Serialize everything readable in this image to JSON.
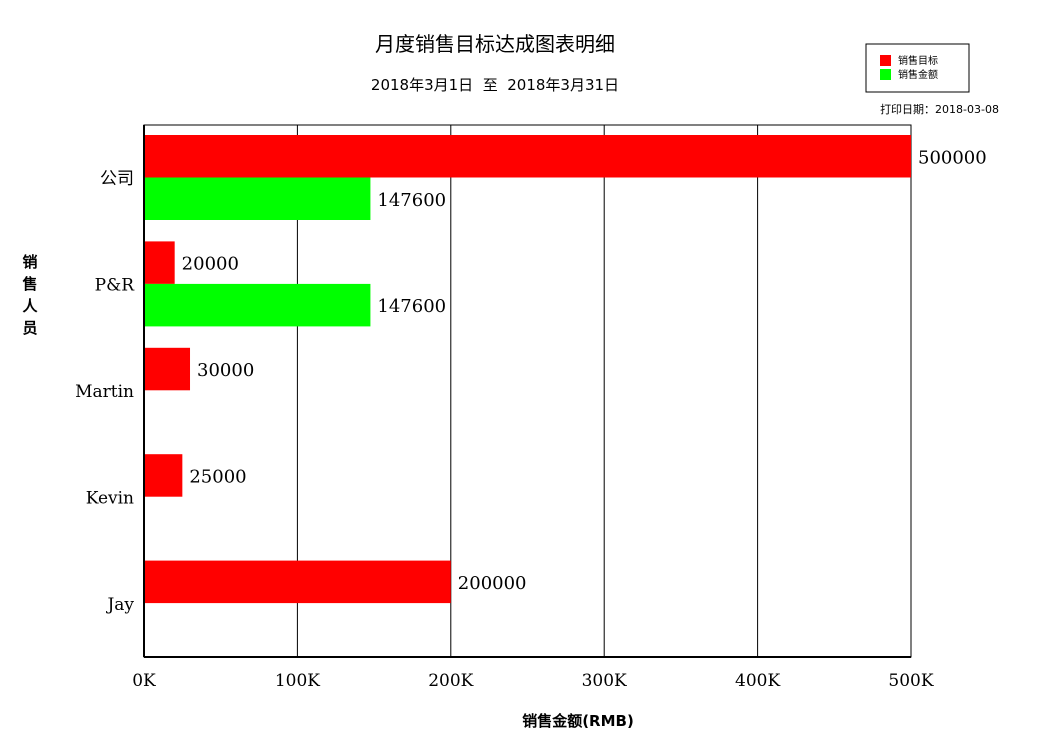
{
  "chart_data": {
    "type": "bar",
    "orientation": "horizontal",
    "title": "月度销售目标达成图表明细",
    "subtitle": "2018年3月1日  至  2018年3月31日",
    "print_date": "打印日期：2018-03-08",
    "xlabel": "销售金额(RMB)",
    "ylabel": "销售人员",
    "xlim": [
      0,
      500000
    ],
    "x_ticks": [
      {
        "value": 0,
        "label": "0K"
      },
      {
        "value": 100000,
        "label": "100K"
      },
      {
        "value": 200000,
        "label": "200K"
      },
      {
        "value": 300000,
        "label": "300K"
      },
      {
        "value": 400000,
        "label": "400K"
      },
      {
        "value": 500000,
        "label": "500K"
      }
    ],
    "grid": true,
    "legend_position": "top-right",
    "categories": [
      "公司",
      "P&R",
      "Martin",
      "Kevin",
      "Jay"
    ],
    "series": [
      {
        "name": "销售目标",
        "color": "#ff0000",
        "values": [
          500000,
          20000,
          30000,
          25000,
          200000
        ]
      },
      {
        "name": "销售金额",
        "color": "#00ff00",
        "values": [
          147600,
          147600,
          null,
          null,
          null
        ]
      }
    ]
  }
}
